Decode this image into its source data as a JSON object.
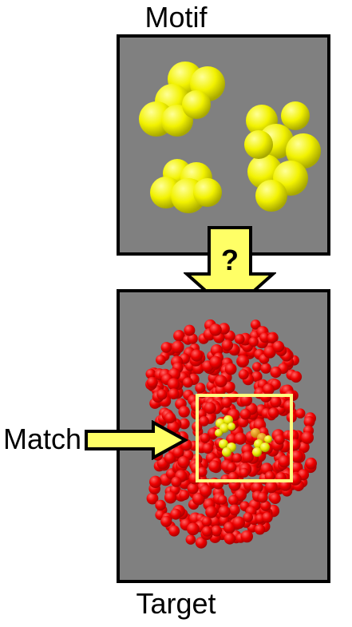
{
  "labels": {
    "motif": "Motif",
    "target": "Target",
    "match": "Match",
    "question": "?"
  },
  "colors": {
    "panel_bg": "#808080",
    "motif_atoms": "#ffff00",
    "target_atoms": "#ff0000",
    "arrow_fill": "#ffff66",
    "match_box": "#ffff80",
    "outline": "#000000"
  },
  "icons": {
    "down_arrow": "down-arrow-icon",
    "right_arrow": "right-arrow-icon"
  }
}
